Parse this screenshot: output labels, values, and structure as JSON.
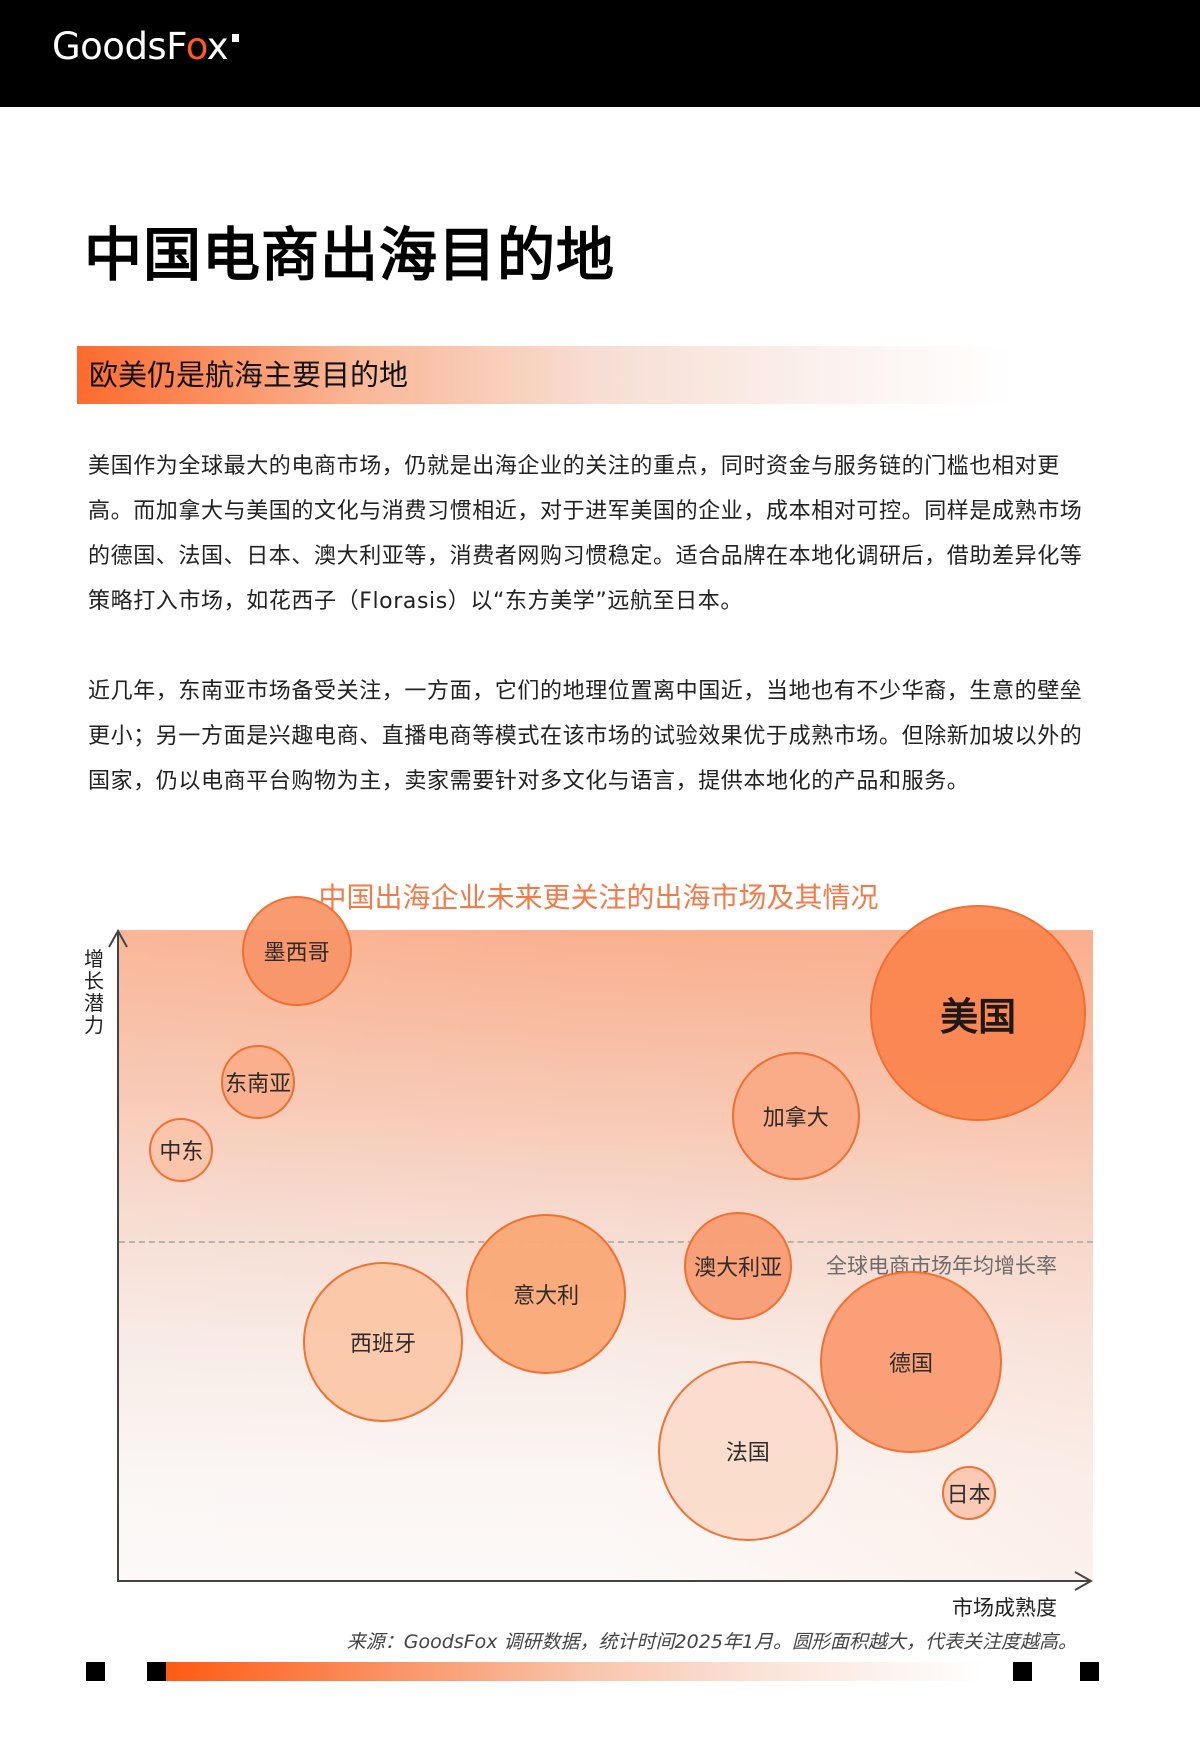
{
  "header": {
    "logo": {
      "prefix": "GoodsF",
      "o": "o",
      "suffix": "x"
    }
  },
  "page": {
    "title": "中国电商出海目的地",
    "section_heading": "欧美仍是航海主要目的地",
    "paragraphs": [
      "美国作为全球最大的电商市场，仍就是出海企业的关注的重点，同时资金与服务链的门槛也相对更高。而加拿大与美国的文化与消费习惯相近，对于进军美国的企业，成本相对可控。同样是成熟市场的德国、法国、日本、澳大利亚等，消费者网购习惯稳定。适合品牌在本地化调研后，借助差异化等策略打入市场，如花西子（Florasis）以“东方美学”远航至日本。",
      "近几年，东南亚市场备受关注，一方面，它们的地理位置离中国近，当地也有不少华裔，生意的壁垒更小；另一方面是兴趣电商、直播电商等模式在该市场的试验效果优于成熟市场。但除新加坡以外的国家，仍以电商平台购物为主，卖家需要针对多文化与语言，提供本地化的产品和服务。"
    ]
  },
  "chart": {
    "title": "中国出海企业未来更关注的出海市场及其情况",
    "y_label": "增长潜力",
    "x_label": "市场成熟度",
    "reference_line_label": "全球电商市场年均增长率",
    "source": "来源：GoodsFox 调研数据，统计时间2025年1月。圆形面积越大，代表关注度越高。"
  },
  "chart_data": {
    "type": "scatter",
    "subtype": "bubble",
    "title": "中国出海企业未来更关注的出海市场及其情况",
    "xlabel": "市场成熟度",
    "ylabel": "增长潜力",
    "grid": false,
    "legend": null,
    "axis_ticks": false,
    "units": "relative position (0-100 scale, estimated from pixel positions); size = relative bubble radius",
    "reference_line": {
      "label": "全球电商市场年均增长率",
      "y": 52
    },
    "points": [
      {
        "name": "美国",
        "x": 87,
        "y": 80,
        "r": 108,
        "fill": "#fc8650",
        "font_size": 38,
        "bold": true
      },
      {
        "name": "加拿大",
        "x": 68,
        "y": 65,
        "r": 64,
        "fill": "#fbaa86",
        "font_size": 22
      },
      {
        "name": "墨西哥",
        "x": 16,
        "y": 89,
        "r": 55,
        "fill": "#f9966a",
        "font_size": 22
      },
      {
        "name": "东南亚",
        "x": 12,
        "y": 70,
        "r": 37,
        "fill": "#fbaf8c",
        "font_size": 22
      },
      {
        "name": "中东",
        "x": 4,
        "y": 60,
        "r": 32,
        "fill": "#fbc5aa",
        "font_size": 22
      },
      {
        "name": "澳大利亚",
        "x": 62,
        "y": 43,
        "r": 54,
        "fill": "#f99d74",
        "font_size": 22
      },
      {
        "name": "意大利",
        "x": 42,
        "y": 39,
        "r": 80,
        "fill": "#fba977",
        "font_size": 22
      },
      {
        "name": "西班牙",
        "x": 25,
        "y": 32,
        "r": 80,
        "fill": "#fcc8a8",
        "font_size": 22
      },
      {
        "name": "德国",
        "x": 80,
        "y": 29,
        "r": 91,
        "fill": "#fb9c72",
        "font_size": 22
      },
      {
        "name": "法国",
        "x": 63,
        "y": 16,
        "r": 90,
        "fill": "#fcdccd",
        "font_size": 22
      },
      {
        "name": "日本",
        "x": 86,
        "y": 10,
        "r": 27,
        "fill": "#fbc8b2",
        "font_size": 22
      }
    ],
    "note": "圆形面积越大，代表关注度越高。"
  },
  "colors": {
    "accent": "#ff5a1f",
    "chart_title": "#f47a48",
    "bubble_stroke": "#f26a28",
    "header_bg": "#000000"
  }
}
